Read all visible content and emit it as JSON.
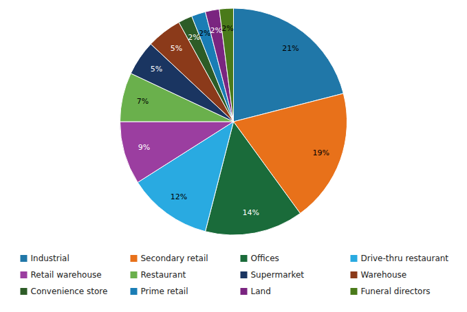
{
  "chart_data": {
    "type": "pie",
    "categories": [
      "Industrial",
      "Secondary retail",
      "Offices",
      "Drive-thru restaurant",
      "Retail warehouse",
      "Restaurant",
      "Supermarket",
      "Warehouse",
      "Convenience store",
      "Prime retail",
      "Land",
      "Funeral directors"
    ],
    "values": [
      21,
      19,
      14,
      12,
      9,
      7,
      5,
      5,
      2,
      2,
      2,
      2
    ],
    "value_labels": [
      "21%",
      "19%",
      "14%",
      "12%",
      "9%",
      "7%",
      "5%",
      "5%",
      "2%",
      "2%",
      "2%",
      "2%"
    ],
    "colors": [
      "#2077a8",
      "#e8711a",
      "#1a6b3a",
      "#29aae1",
      "#9b3ea0",
      "#6ab04c",
      "#1a3561",
      "#8b3a1a",
      "#2d5c27",
      "#1a7db5",
      "#7a2580",
      "#4a7a1a"
    ],
    "data_labels": true,
    "legend": "bottom"
  }
}
